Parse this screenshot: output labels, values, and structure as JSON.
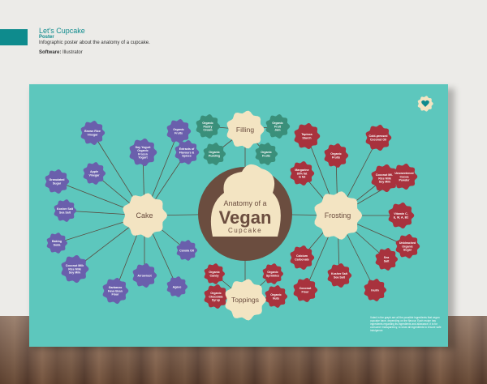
{
  "colors": {
    "teal": "#5dc7bd",
    "accent": "#0e8b8d",
    "brown": "#6b4d3f",
    "cream": "#f3e4c2",
    "purple": "#6a5fac",
    "red": "#a8323d",
    "green": "#3a8f7a"
  },
  "caption": {
    "title": "Let's Cupcake",
    "subtitle": "Poster",
    "description": "Infographic poster about the anatomy of a cupcake.",
    "software_label": "Software:",
    "software_value": "Illustrator"
  },
  "poster": {
    "center": {
      "line1": "Anatomy of a",
      "line2": "Vegan",
      "line3": "Cupcake"
    },
    "hubs": {
      "cake": "Cake",
      "filling": "Filling",
      "frosting": "Frosting",
      "toppings": "Toppings"
    },
    "cake_items": [
      [
        "Brown Rice",
        "Vinegar"
      ],
      [
        "Organic",
        "Fruits"
      ],
      [
        "Soy Yogurt",
        "Organic",
        "Frozen",
        "Yogurt"
      ],
      [
        "Apple",
        "Vinegar"
      ],
      [
        "Extracts of",
        "Flavours &",
        "Spices"
      ],
      [
        "Granulated",
        "Sugar"
      ],
      [
        "Kosher Salt",
        "Sea Salt"
      ],
      [
        "Baking",
        "Soda"
      ],
      [
        "Coconut Milk",
        "Rice Milk",
        "Soy Milk"
      ],
      [
        "Arrowroot"
      ],
      [
        "Garbanzo",
        "Fava Bean",
        "Flour"
      ],
      [
        "Agave"
      ],
      [
        "Canola Oil"
      ]
    ],
    "filling_items": [
      [
        "Organic",
        "Pastry",
        "Cream"
      ],
      [
        "Organic",
        "Fruit",
        "Jam"
      ],
      [
        "Organic",
        "Pudding"
      ],
      [
        "Organic",
        "Fruits"
      ]
    ],
    "frosting_items": [
      [
        "Tapioca",
        "Starch"
      ],
      [
        "Cold-pressed",
        "Coconut Oil"
      ],
      [
        "Organic",
        "Fruits"
      ],
      [
        "Margarine",
        "80% fat",
        "in fat"
      ],
      [
        "Coconut Milk",
        "Rice Milk",
        "Soy Milk"
      ],
      [
        "Unsweetened",
        "Cocoa",
        "Powder"
      ],
      [
        "Vitamin C,",
        "E, M, A, B2"
      ],
      [
        "Calcium",
        "Carbonate"
      ],
      [
        "Unbleached",
        "Organic",
        "Sugar"
      ],
      [
        "Kosher Salt",
        "Sea Salt"
      ],
      [
        "Sea",
        "Salt"
      ],
      [
        "Coconut",
        "Flour"
      ],
      [
        "Inulin"
      ]
    ],
    "topping_items": [
      [
        "Organic",
        "Candy"
      ],
      [
        "Organic",
        "Sprinkles"
      ],
      [
        "Organic",
        "Chocolate",
        "Syrup"
      ],
      [
        "Organic",
        "Nuts"
      ]
    ],
    "note": "Voted in the graph are all the possible ingredients that vegan cupcake have, depending on the flavour. Each recipe has ingredients regarding its ingredients and allowance, it is for consumer transparency, to show all ingredients to ensure safe indulgence."
  }
}
